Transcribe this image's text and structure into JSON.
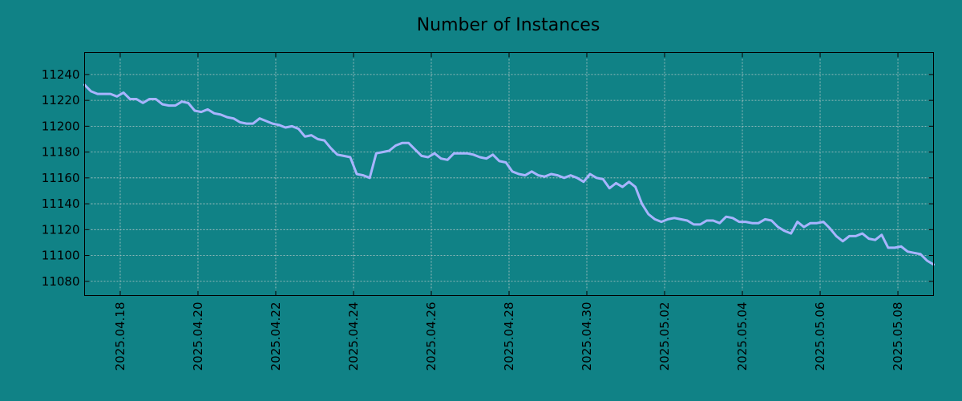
{
  "chart_data": {
    "type": "line",
    "title": "Number of Instances",
    "xlabel": "",
    "ylabel": "",
    "x_ticks": [
      "2025.04.18",
      "2025.04.20",
      "2025.04.22",
      "2025.04.24",
      "2025.04.26",
      "2025.04.28",
      "2025.04.30",
      "2025.05.02",
      "2025.05.04",
      "2025.05.06",
      "2025.05.08"
    ],
    "y_ticks": [
      11080,
      11100,
      11120,
      11140,
      11160,
      11180,
      11200,
      11220,
      11240
    ],
    "xlim": [
      "2025-04-17 02:00",
      "2025-05-08 22:00"
    ],
    "ylim": [
      11069,
      11257
    ],
    "grid": true,
    "series": [
      {
        "name": "",
        "color": "#a8b4ff",
        "points": [
          [
            "2025-04-17 02:00",
            11232
          ],
          [
            "2025-04-17 06:00",
            11227
          ],
          [
            "2025-04-17 10:00",
            11225
          ],
          [
            "2025-04-17 14:00",
            11225
          ],
          [
            "2025-04-17 18:00",
            11225
          ],
          [
            "2025-04-17 22:00",
            11223
          ],
          [
            "2025-04-18 02:00",
            11226
          ],
          [
            "2025-04-18 06:00",
            11221
          ],
          [
            "2025-04-18 10:00",
            11221
          ],
          [
            "2025-04-18 14:00",
            11218
          ],
          [
            "2025-04-18 18:00",
            11221
          ],
          [
            "2025-04-18 22:00",
            11221
          ],
          [
            "2025-04-19 02:00",
            11217
          ],
          [
            "2025-04-19 06:00",
            11216
          ],
          [
            "2025-04-19 10:00",
            11216
          ],
          [
            "2025-04-19 14:00",
            11219
          ],
          [
            "2025-04-19 18:00",
            11218
          ],
          [
            "2025-04-19 22:00",
            11212
          ],
          [
            "2025-04-20 02:00",
            11211
          ],
          [
            "2025-04-20 06:00",
            11213
          ],
          [
            "2025-04-20 10:00",
            11210
          ],
          [
            "2025-04-20 14:00",
            11209
          ],
          [
            "2025-04-20 18:00",
            11207
          ],
          [
            "2025-04-20 22:00",
            11206
          ],
          [
            "2025-04-21 02:00",
            11203
          ],
          [
            "2025-04-21 06:00",
            11202
          ],
          [
            "2025-04-21 10:00",
            11202
          ],
          [
            "2025-04-21 14:00",
            11206
          ],
          [
            "2025-04-21 18:00",
            11204
          ],
          [
            "2025-04-21 22:00",
            11202
          ],
          [
            "2025-04-22 02:00",
            11201
          ],
          [
            "2025-04-22 06:00",
            11199
          ],
          [
            "2025-04-22 10:00",
            11200
          ],
          [
            "2025-04-22 14:00",
            11198
          ],
          [
            "2025-04-22 18:00",
            11192
          ],
          [
            "2025-04-22 22:00",
            11193
          ],
          [
            "2025-04-23 02:00",
            11190
          ],
          [
            "2025-04-23 06:00",
            11189
          ],
          [
            "2025-04-23 10:00",
            11183
          ],
          [
            "2025-04-23 14:00",
            11178
          ],
          [
            "2025-04-23 18:00",
            11177
          ],
          [
            "2025-04-23 22:00",
            11176
          ],
          [
            "2025-04-24 02:00",
            11163
          ],
          [
            "2025-04-24 06:00",
            11162
          ],
          [
            "2025-04-24 10:00",
            11160
          ],
          [
            "2025-04-24 14:00",
            11179
          ],
          [
            "2025-04-24 18:00",
            11180
          ],
          [
            "2025-04-24 22:00",
            11181
          ],
          [
            "2025-04-25 02:00",
            11185
          ],
          [
            "2025-04-25 06:00",
            11187
          ],
          [
            "2025-04-25 10:00",
            11187
          ],
          [
            "2025-04-25 14:00",
            11182
          ],
          [
            "2025-04-25 18:00",
            11177
          ],
          [
            "2025-04-25 22:00",
            11176
          ],
          [
            "2025-04-26 02:00",
            11179
          ],
          [
            "2025-04-26 06:00",
            11175
          ],
          [
            "2025-04-26 10:00",
            11174
          ],
          [
            "2025-04-26 14:00",
            11179
          ],
          [
            "2025-04-26 18:00",
            11179
          ],
          [
            "2025-04-26 22:00",
            11179
          ],
          [
            "2025-04-27 02:00",
            11178
          ],
          [
            "2025-04-27 06:00",
            11176
          ],
          [
            "2025-04-27 10:00",
            11175
          ],
          [
            "2025-04-27 14:00",
            11178
          ],
          [
            "2025-04-27 18:00",
            11173
          ],
          [
            "2025-04-27 22:00",
            11172
          ],
          [
            "2025-04-28 02:00",
            11165
          ],
          [
            "2025-04-28 06:00",
            11163
          ],
          [
            "2025-04-28 10:00",
            11162
          ],
          [
            "2025-04-28 14:00",
            11165
          ],
          [
            "2025-04-28 18:00",
            11162
          ],
          [
            "2025-04-28 22:00",
            11161
          ],
          [
            "2025-04-29 02:00",
            11163
          ],
          [
            "2025-04-29 06:00",
            11162
          ],
          [
            "2025-04-29 10:00",
            11160
          ],
          [
            "2025-04-29 14:00",
            11162
          ],
          [
            "2025-04-29 18:00",
            11160
          ],
          [
            "2025-04-29 22:00",
            11157
          ],
          [
            "2025-04-30 02:00",
            11163
          ],
          [
            "2025-04-30 06:00",
            11160
          ],
          [
            "2025-04-30 10:00",
            11159
          ],
          [
            "2025-04-30 14:00",
            11152
          ],
          [
            "2025-04-30 18:00",
            11156
          ],
          [
            "2025-04-30 22:00",
            11153
          ],
          [
            "2025-05-01 02:00",
            11157
          ],
          [
            "2025-05-01 06:00",
            11153
          ],
          [
            "2025-05-01 10:00",
            11140
          ],
          [
            "2025-05-01 14:00",
            11132
          ],
          [
            "2025-05-01 18:00",
            11128
          ],
          [
            "2025-05-01 22:00",
            11126
          ],
          [
            "2025-05-02 02:00",
            11128
          ],
          [
            "2025-05-02 06:00",
            11129
          ],
          [
            "2025-05-02 10:00",
            11128
          ],
          [
            "2025-05-02 14:00",
            11127
          ],
          [
            "2025-05-02 18:00",
            11124
          ],
          [
            "2025-05-02 22:00",
            11124
          ],
          [
            "2025-05-03 02:00",
            11127
          ],
          [
            "2025-05-03 06:00",
            11127
          ],
          [
            "2025-05-03 10:00",
            11125
          ],
          [
            "2025-05-03 14:00",
            11130
          ],
          [
            "2025-05-03 18:00",
            11129
          ],
          [
            "2025-05-03 22:00",
            11126
          ],
          [
            "2025-05-04 02:00",
            11126
          ],
          [
            "2025-05-04 06:00",
            11125
          ],
          [
            "2025-05-04 10:00",
            11125
          ],
          [
            "2025-05-04 14:00",
            11128
          ],
          [
            "2025-05-04 18:00",
            11127
          ],
          [
            "2025-05-04 22:00",
            11122
          ],
          [
            "2025-05-05 02:00",
            11119
          ],
          [
            "2025-05-05 06:00",
            11117
          ],
          [
            "2025-05-05 10:00",
            11126
          ],
          [
            "2025-05-05 14:00",
            11122
          ],
          [
            "2025-05-05 18:00",
            11125
          ],
          [
            "2025-05-05 22:00",
            11125
          ],
          [
            "2025-05-06 02:00",
            11126
          ],
          [
            "2025-05-06 06:00",
            11121
          ],
          [
            "2025-05-06 10:00",
            11115
          ],
          [
            "2025-05-06 14:00",
            11111
          ],
          [
            "2025-05-06 18:00",
            11115
          ],
          [
            "2025-05-06 22:00",
            11115
          ],
          [
            "2025-05-07 02:00",
            11117
          ],
          [
            "2025-05-07 06:00",
            11113
          ],
          [
            "2025-05-07 10:00",
            11112
          ],
          [
            "2025-05-07 14:00",
            11116
          ],
          [
            "2025-05-07 18:00",
            11106
          ],
          [
            "2025-05-07 22:00",
            11106
          ],
          [
            "2025-05-08 02:00",
            11107
          ],
          [
            "2025-05-08 06:00",
            11103
          ],
          [
            "2025-05-08 10:00",
            11102
          ],
          [
            "2025-05-08 14:00",
            11101
          ],
          [
            "2025-05-08 18:00",
            11096
          ],
          [
            "2025-05-08 22:00",
            11093
          ]
        ]
      }
    ]
  }
}
